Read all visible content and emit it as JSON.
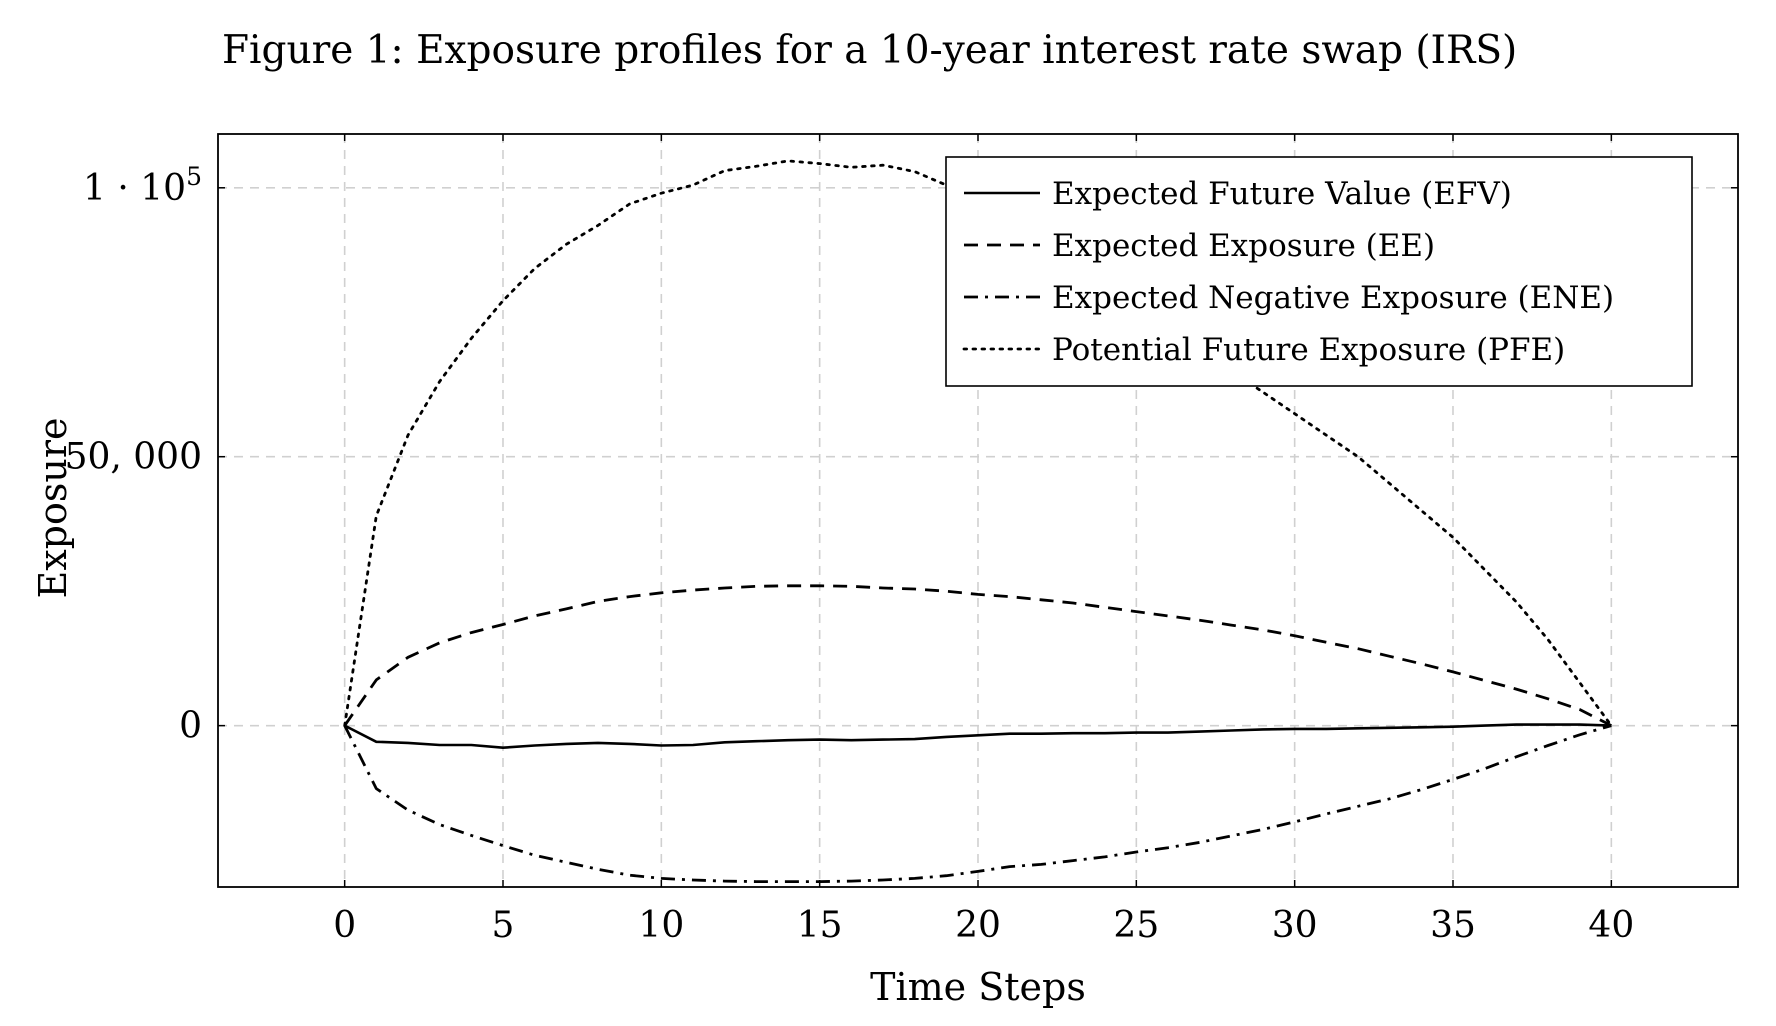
{
  "figure": {
    "title": "Figure 1: Exposure profiles for a 10-year interest rate swap (IRS)"
  },
  "chart_data": {
    "type": "line",
    "title": "Figure 1: Exposure profiles for a 10-year interest rate swap (IRS)",
    "xlabel": "Time Steps",
    "ylabel": "Exposure",
    "xlim": [
      -4,
      44
    ],
    "ylim": [
      -30000,
      110000
    ],
    "grid": true,
    "legend_position": "top-right",
    "x_ticks": [
      0,
      5,
      10,
      15,
      20,
      25,
      30,
      35,
      40
    ],
    "x_tick_labels": [
      "0",
      "5",
      "10",
      "15",
      "20",
      "25",
      "30",
      "35",
      "40"
    ],
    "y_ticks": [
      0,
      50000,
      100000
    ],
    "y_tick_labels": [
      "0",
      "50, 000",
      "1 · 10"
    ],
    "y_tick_exponent": "5",
    "x": [
      0,
      1,
      2,
      3,
      4,
      5,
      6,
      7,
      8,
      9,
      10,
      11,
      12,
      13,
      14,
      15,
      16,
      17,
      18,
      19,
      20,
      21,
      22,
      23,
      24,
      25,
      26,
      27,
      28,
      29,
      30,
      31,
      32,
      33,
      34,
      35,
      36,
      37,
      38,
      39,
      40
    ],
    "series": [
      {
        "name": "Expected Future Value (EFV)",
        "style": "solid",
        "values": [
          0,
          -3000,
          -3200,
          -3600,
          -3600,
          -4100,
          -3700,
          -3400,
          -3200,
          -3400,
          -3700,
          -3600,
          -3100,
          -2900,
          -2700,
          -2600,
          -2700,
          -2600,
          -2500,
          -2100,
          -1800,
          -1500,
          -1500,
          -1400,
          -1400,
          -1300,
          -1300,
          -1100,
          -900,
          -700,
          -600,
          -600,
          -500,
          -400,
          -300,
          -200,
          0,
          200,
          200,
          200,
          0
        ]
      },
      {
        "name": "Expected Exposure (EE)",
        "style": "dashed",
        "values": [
          0,
          8500,
          12700,
          15400,
          17300,
          18800,
          20400,
          21700,
          23100,
          24000,
          24700,
          25200,
          25600,
          25900,
          26000,
          26000,
          25900,
          25600,
          25400,
          25000,
          24400,
          24000,
          23400,
          22800,
          22000,
          21200,
          20400,
          19600,
          18700,
          17800,
          16700,
          15500,
          14300,
          12900,
          11500,
          10000,
          8400,
          6800,
          5000,
          3000,
          0
        ]
      },
      {
        "name": "Expected Negative Exposure (ENE)",
        "style": "dashdot",
        "values": [
          0,
          -11700,
          -15700,
          -18400,
          -20400,
          -22300,
          -24100,
          -25400,
          -26700,
          -27800,
          -28400,
          -28700,
          -28900,
          -29000,
          -29000,
          -29000,
          -28900,
          -28700,
          -28400,
          -27900,
          -27100,
          -26200,
          -25800,
          -25100,
          -24400,
          -23500,
          -22700,
          -21700,
          -20500,
          -19300,
          -17900,
          -16400,
          -15000,
          -13600,
          -11900,
          -10000,
          -8000,
          -5800,
          -3700,
          -1700,
          0
        ]
      },
      {
        "name": "Potential Future Exposure (PFE)",
        "style": "dotted",
        "values": [
          0,
          39000,
          54000,
          64000,
          72000,
          79000,
          85000,
          89500,
          93000,
          97000,
          99000,
          100500,
          103200,
          104000,
          105000,
          104500,
          103800,
          104200,
          103000,
          100500,
          96000,
          92000,
          89000,
          86000,
          82000,
          78000,
          74000,
          70000,
          66000,
          62000,
          58000,
          54000,
          50000,
          45000,
          40000,
          35000,
          29000,
          23000,
          16000,
          8000,
          0
        ]
      }
    ]
  }
}
